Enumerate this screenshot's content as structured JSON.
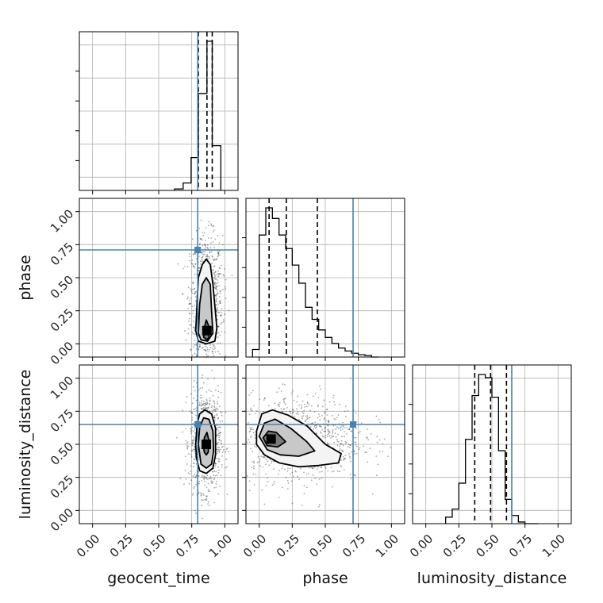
{
  "chart_data": {
    "type": "corner",
    "parameters": [
      "geocent_time",
      "phase",
      "luminosity_distance"
    ],
    "axis_range": [
      -0.1,
      1.1
    ],
    "tick_labels": [
      "0.00",
      "0.25",
      "0.50",
      "0.75",
      "1.00"
    ],
    "grid": true,
    "truth_color": "#4682b4",
    "truths": {
      "geocent_time": 0.795,
      "phase": 0.71,
      "luminosity_distance": 0.65
    },
    "histograms": [
      {
        "name": "geocent_time",
        "quantiles": [
          0.8,
          0.865,
          0.905
        ],
        "bin_edges": [
          0.62,
          0.685,
          0.745,
          0.8,
          0.865,
          0.905,
          0.97
        ],
        "counts": [
          0.01,
          0.05,
          0.22,
          0.65,
          1.0,
          0.3
        ]
      },
      {
        "name": "phase",
        "quantiles": [
          0.075,
          0.205,
          0.44
        ],
        "bin_edges": [
          -0.05,
          0.0,
          0.05,
          0.1,
          0.15,
          0.2,
          0.25,
          0.3,
          0.35,
          0.4,
          0.45,
          0.5,
          0.55,
          0.6,
          0.65,
          0.7,
          0.75,
          0.8,
          0.85,
          0.9
        ],
        "counts": [
          0.05,
          0.81,
          0.99,
          0.92,
          0.81,
          0.72,
          0.61,
          0.49,
          0.33,
          0.25,
          0.18,
          0.13,
          0.09,
          0.06,
          0.04,
          0.025,
          0.015,
          0.01,
          0.0
        ]
      },
      {
        "name": "luminosity_distance",
        "quantiles": [
          0.37,
          0.49,
          0.61
        ],
        "bin_edges": [
          0.15,
          0.2,
          0.25,
          0.3,
          0.35,
          0.4,
          0.45,
          0.5,
          0.55,
          0.6,
          0.65,
          0.7,
          0.75,
          0.8,
          0.85
        ],
        "counts": [
          0.04,
          0.09,
          0.25,
          0.52,
          0.79,
          0.92,
          0.9,
          0.78,
          0.45,
          0.15,
          0.05,
          0.01,
          0.0,
          0.0
        ]
      }
    ],
    "joint": [
      {
        "x": "geocent_time",
        "y": "phase",
        "center": [
          0.865,
          0.1
        ],
        "contours": [
          [
            [
              0.78,
              0.1
            ],
            [
              0.79,
              0.3
            ],
            [
              0.8,
              0.5
            ],
            [
              0.83,
              0.6
            ],
            [
              0.86,
              0.64
            ],
            [
              0.89,
              0.6
            ],
            [
              0.91,
              0.45
            ],
            [
              0.94,
              0.12
            ],
            [
              0.925,
              0.02
            ],
            [
              0.86,
              0.0
            ],
            [
              0.8,
              0.02
            ]
          ],
          [
            [
              0.8,
              0.08
            ],
            [
              0.81,
              0.3
            ],
            [
              0.83,
              0.45
            ],
            [
              0.86,
              0.5
            ],
            [
              0.89,
              0.45
            ],
            [
              0.9,
              0.25
            ],
            [
              0.91,
              0.08
            ],
            [
              0.87,
              0.02
            ],
            [
              0.82,
              0.03
            ]
          ],
          [
            [
              0.84,
              0.05
            ],
            [
              0.845,
              0.12
            ],
            [
              0.86,
              0.18
            ],
            [
              0.88,
              0.13
            ],
            [
              0.88,
              0.05
            ],
            [
              0.865,
              0.03
            ]
          ]
        ]
      },
      {
        "x": "geocent_time",
        "y": "luminosity_distance",
        "center": [
          0.86,
          0.5
        ],
        "contours": [
          [
            [
              0.78,
              0.5
            ],
            [
              0.79,
              0.65
            ],
            [
              0.81,
              0.73
            ],
            [
              0.85,
              0.76
            ],
            [
              0.9,
              0.73
            ],
            [
              0.93,
              0.62
            ],
            [
              0.93,
              0.42
            ],
            [
              0.91,
              0.32
            ],
            [
              0.86,
              0.28
            ],
            [
              0.81,
              0.3
            ],
            [
              0.785,
              0.4
            ]
          ],
          [
            [
              0.8,
              0.5
            ],
            [
              0.81,
              0.63
            ],
            [
              0.84,
              0.7
            ],
            [
              0.88,
              0.69
            ],
            [
              0.91,
              0.6
            ],
            [
              0.915,
              0.45
            ],
            [
              0.9,
              0.35
            ],
            [
              0.86,
              0.32
            ],
            [
              0.82,
              0.35
            ]
          ],
          [
            [
              0.84,
              0.48
            ],
            [
              0.845,
              0.55
            ],
            [
              0.865,
              0.59
            ],
            [
              0.88,
              0.53
            ],
            [
              0.875,
              0.44
            ],
            [
              0.86,
              0.42
            ],
            [
              0.845,
              0.44
            ]
          ]
        ]
      },
      {
        "x": "phase",
        "y": "luminosity_distance",
        "center": [
          0.09,
          0.54
        ],
        "contours": [
          [
            [
              -0.02,
              0.6
            ],
            [
              0.02,
              0.73
            ],
            [
              0.1,
              0.76
            ],
            [
              0.22,
              0.72
            ],
            [
              0.36,
              0.64
            ],
            [
              0.5,
              0.5
            ],
            [
              0.62,
              0.43
            ],
            [
              0.6,
              0.36
            ],
            [
              0.45,
              0.34
            ],
            [
              0.3,
              0.33
            ],
            [
              0.15,
              0.36
            ],
            [
              0.04,
              0.42
            ],
            [
              -0.02,
              0.5
            ]
          ],
          [
            [
              0.0,
              0.56
            ],
            [
              0.04,
              0.66
            ],
            [
              0.12,
              0.69
            ],
            [
              0.24,
              0.62
            ],
            [
              0.36,
              0.52
            ],
            [
              0.42,
              0.45
            ],
            [
              0.3,
              0.41
            ],
            [
              0.16,
              0.42
            ],
            [
              0.06,
              0.46
            ]
          ],
          [
            [
              0.03,
              0.55
            ],
            [
              0.07,
              0.6
            ],
            [
              0.13,
              0.59
            ],
            [
              0.2,
              0.52
            ],
            [
              0.14,
              0.48
            ],
            [
              0.06,
              0.49
            ]
          ]
        ]
      }
    ]
  }
}
